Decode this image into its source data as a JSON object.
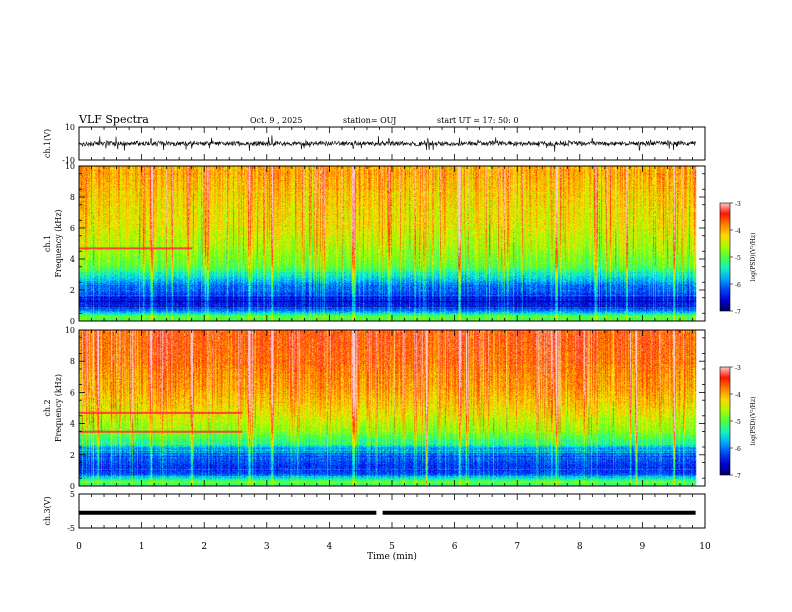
{
  "header": {
    "title": "VLF Spectra",
    "date": "Oct. 9 , 2025",
    "station": "station= OUJ",
    "start_ut": "start UT = 17: 50: 0"
  },
  "colors": {
    "colormap": [
      "#000080",
      "#0000ff",
      "#00a0ff",
      "#00ffff",
      "#00ff40",
      "#80ff00",
      "#ffff00",
      "#ff8000",
      "#ff0000",
      "#ffffff"
    ]
  },
  "chart_data": [
    {
      "type": "line",
      "panel": "ch1-waveform",
      "ylabel": "ch.1(V)",
      "ylim": [
        -10,
        10
      ],
      "yticks": [
        "10",
        "-10"
      ],
      "xlim": [
        0,
        10
      ],
      "data_extent_min": 9.85,
      "baseline": 0,
      "noise_band": [
        -1.5,
        1.5
      ],
      "spikes": [
        {
          "t": 0.62,
          "v": -3.5
        },
        {
          "t": 1.15,
          "v": 3.0
        },
        {
          "t": 1.35,
          "v": -4.0
        },
        {
          "t": 2.12,
          "v": 3.5
        },
        {
          "t": 2.72,
          "v": -4.5
        },
        {
          "t": 3.08,
          "v": 5.0
        },
        {
          "t": 3.55,
          "v": -3.5
        },
        {
          "t": 4.38,
          "v": -3.0
        },
        {
          "t": 4.95,
          "v": 3.0
        },
        {
          "t": 5.55,
          "v": -4.0
        },
        {
          "t": 6.08,
          "v": 3.5
        },
        {
          "t": 7.6,
          "v": -5.0
        },
        {
          "t": 8.2,
          "v": 3.0
        },
        {
          "t": 8.95,
          "v": -3.5
        },
        {
          "t": 9.5,
          "v": -4.0
        }
      ]
    },
    {
      "type": "heatmap",
      "panel": "ch1-spectrogram",
      "ylabel_channel": "ch.1",
      "ylabel": "Frequency (kHz)",
      "ylim": [
        0,
        10
      ],
      "yticks": [
        "0",
        "2",
        "4",
        "6",
        "8",
        "10"
      ],
      "xlim": [
        0,
        10
      ],
      "data_extent_min": 9.85,
      "colorbar": {
        "label": "log(PSD)(V²/Hz)",
        "range": [
          -7,
          -3
        ],
        "ticks": [
          "-7",
          "-6",
          "-5",
          "-4",
          "-3"
        ]
      },
      "psd_by_frequency_khz": [
        {
          "f": 0.3,
          "log_psd": -5.0
        },
        {
          "f": 0.8,
          "log_psd": -6.3
        },
        {
          "f": 1.3,
          "log_psd": -6.5
        },
        {
          "f": 1.8,
          "log_psd": -6.2
        },
        {
          "f": 2.3,
          "log_psd": -6.0
        },
        {
          "f": 2.8,
          "log_psd": -5.6
        },
        {
          "f": 3.5,
          "log_psd": -5.0
        },
        {
          "f": 4.5,
          "log_psd": -4.7
        },
        {
          "f": 6.0,
          "log_psd": -4.4
        },
        {
          "f": 8.0,
          "log_psd": -4.2
        },
        {
          "f": 9.5,
          "log_psd": -4.0
        }
      ],
      "bursts_min": [
        1.15,
        2.05,
        2.72,
        3.08,
        4.38,
        4.95,
        6.08,
        7.62,
        8.25,
        9.5
      ],
      "emission_lines": [
        {
          "f_khz": 4.7,
          "t_start": 0.0,
          "t_end": 1.8
        }
      ]
    },
    {
      "type": "heatmap",
      "panel": "ch2-spectrogram",
      "ylabel_channel": "ch.2",
      "ylabel": "Frequency (kHz)",
      "ylim": [
        0,
        10
      ],
      "yticks": [
        "0",
        "2",
        "4",
        "6",
        "8",
        "10"
      ],
      "xlim": [
        0,
        10
      ],
      "data_extent_min": 9.85,
      "colorbar": {
        "label": "log(PSD)(V²/Hz)",
        "range": [
          -7,
          -3
        ],
        "ticks": [
          "-7",
          "-6",
          "-5",
          "-4",
          "-3"
        ]
      },
      "psd_by_frequency_khz": [
        {
          "f": 0.3,
          "log_psd": -5.0
        },
        {
          "f": 0.8,
          "log_psd": -6.2
        },
        {
          "f": 1.3,
          "log_psd": -6.3
        },
        {
          "f": 1.8,
          "log_psd": -6.1
        },
        {
          "f": 2.3,
          "log_psd": -5.9
        },
        {
          "f": 2.8,
          "log_psd": -5.3
        },
        {
          "f": 3.5,
          "log_psd": -4.8
        },
        {
          "f": 4.5,
          "log_psd": -4.4
        },
        {
          "f": 6.0,
          "log_psd": -4.0
        },
        {
          "f": 8.0,
          "log_psd": -3.7
        },
        {
          "f": 9.5,
          "log_psd": -3.6
        }
      ],
      "bursts_min": [
        0.3,
        1.15,
        1.8,
        2.72,
        3.08,
        4.38,
        5.55,
        6.08,
        7.62,
        8.9,
        9.5
      ],
      "emission_lines": [
        {
          "f_khz": 3.5,
          "t_start": 0.0,
          "t_end": 2.6
        },
        {
          "f_khz": 4.7,
          "t_start": 0.0,
          "t_end": 2.6
        }
      ]
    },
    {
      "type": "line",
      "panel": "ch3-trace",
      "ylabel": "ch.3(V)",
      "ylim": [
        -5,
        5
      ],
      "yticks": [
        "5",
        "-5"
      ],
      "xlim": [
        0,
        10
      ],
      "data_extent_min": 9.85,
      "value": -0.5,
      "gap_min": [
        4.75,
        4.85
      ],
      "xlabel": "Time (min)",
      "xticks": [
        "0",
        "1",
        "2",
        "3",
        "4",
        "5",
        "6",
        "7",
        "8",
        "9",
        "10"
      ]
    }
  ]
}
